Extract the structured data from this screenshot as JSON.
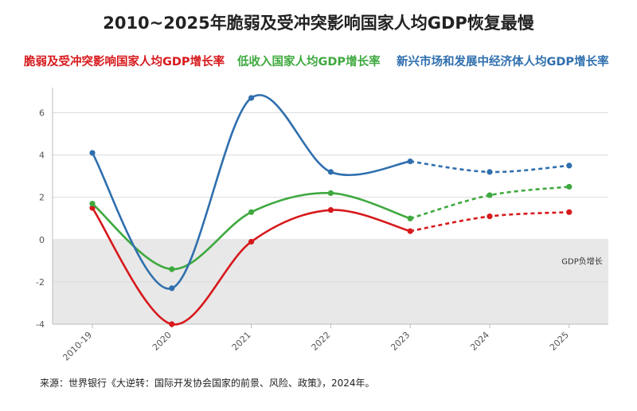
{
  "title": "2010~2025年脆弱及受冲突影响国家人均GDP恢复最慢",
  "source": "来源：世界银行《大逆转：国际开发协会国家的前景、风险、政策》，2024年。",
  "chart_data": {
    "type": "line",
    "title": "2010~2025年脆弱及受冲突影响国家人均GDP恢复最慢",
    "categories": [
      "2010-19",
      "2020",
      "2021",
      "2022",
      "2023",
      "2024",
      "2025"
    ],
    "ylim": [
      -4,
      7
    ],
    "yticks": [
      6,
      4,
      2,
      0,
      -2,
      -4
    ],
    "ytick_labels": [
      "6",
      "4",
      "2",
      "0",
      "-2",
      "-4"
    ],
    "grid": true,
    "legend_position": "top",
    "forecast_from_index": 4,
    "negative_band_label": "GDP负增长",
    "negative_band_color": "#e8e8e8",
    "series": [
      {
        "name": "脆弱及受冲突影响国家人均GDP增长率",
        "color": "#d7191c",
        "values": [
          1.5,
          -4.0,
          -0.1,
          1.4,
          0.4,
          1.1,
          1.3
        ]
      },
      {
        "name": "低收入国家人均GDP增长率",
        "color": "#3fa93f",
        "values": [
          1.7,
          -1.4,
          1.3,
          2.2,
          1.0,
          2.1,
          2.5
        ]
      },
      {
        "name": "新兴市场和发展中经济体人均GDP增长率",
        "color": "#2f6fae",
        "values": [
          4.1,
          -2.3,
          6.7,
          3.2,
          3.7,
          3.2,
          3.5
        ]
      }
    ]
  }
}
